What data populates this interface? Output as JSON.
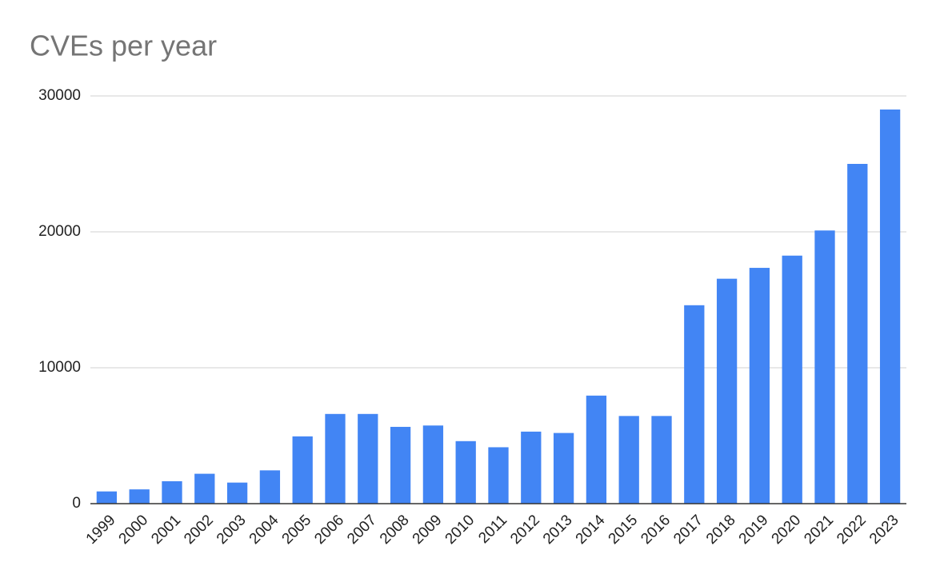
{
  "chart_data": {
    "type": "bar",
    "title": "CVEs per year",
    "categories": [
      "1999",
      "2000",
      "2001",
      "2002",
      "2003",
      "2004",
      "2005",
      "2006",
      "2007",
      "2008",
      "2009",
      "2010",
      "2011",
      "2012",
      "2013",
      "2014",
      "2015",
      "2016",
      "2017",
      "2018",
      "2019",
      "2020",
      "2021",
      "2022",
      "2023"
    ],
    "values": [
      900,
      1050,
      1650,
      2200,
      1550,
      2450,
      4950,
      6600,
      6600,
      5650,
      5750,
      4600,
      4150,
      5300,
      5200,
      7950,
      6450,
      6450,
      14600,
      16550,
      17350,
      18250,
      20100,
      25000,
      29000
    ],
    "color": "#4285f4",
    "ylim": [
      0,
      30000
    ],
    "yticks": [
      0,
      10000,
      20000,
      30000
    ],
    "grid": true
  }
}
